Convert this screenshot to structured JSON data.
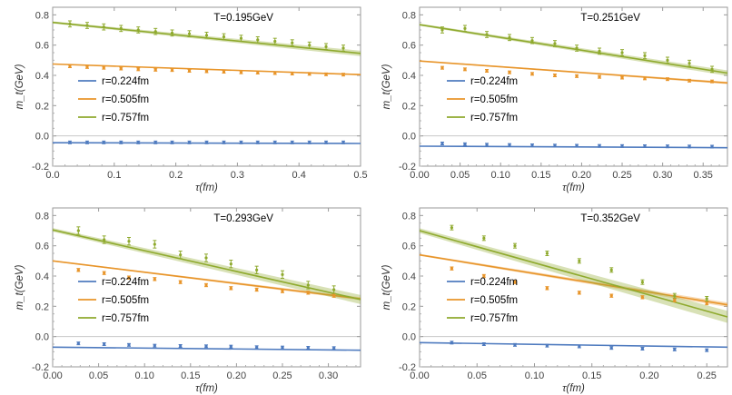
{
  "chart_data": [
    {
      "type": "scatter",
      "title": "T=0.195GeV",
      "xlabel": "τ(fm)",
      "ylabel": "m_t(GeV)",
      "xlim": [
        0,
        0.5
      ],
      "ylim": [
        -0.2,
        0.85
      ],
      "xticks": [
        "0.0",
        "0.1",
        "0.2",
        "0.3",
        "0.4",
        "0.5"
      ],
      "xtick_values": [
        0,
        0.1,
        0.2,
        0.3,
        0.4,
        0.5
      ],
      "yticks": [
        "-0.2",
        "0.0",
        "0.2",
        "0.4",
        "0.6",
        "0.8"
      ],
      "ytick_values": [
        -0.2,
        0,
        0.2,
        0.4,
        0.6,
        0.8
      ],
      "series": [
        {
          "name": "r=0.224fm",
          "color": "#4f7bbf",
          "x": [
            0.028,
            0.056,
            0.083,
            0.111,
            0.139,
            0.167,
            0.194,
            0.222,
            0.25,
            0.278,
            0.306,
            0.333,
            0.361,
            0.389,
            0.417,
            0.444,
            0.472
          ],
          "y": [
            -0.043,
            -0.043,
            -0.043,
            -0.043,
            -0.043,
            -0.043,
            -0.043,
            -0.043,
            -0.043,
            -0.043,
            -0.043,
            -0.043,
            -0.043,
            -0.043,
            -0.043,
            -0.043,
            -0.043
          ],
          "err": 0.004,
          "fit": [
            -0.045,
            -0.05
          ],
          "band": 0.002
        },
        {
          "name": "r=0.505fm",
          "color": "#e8952a",
          "x": [
            0.028,
            0.056,
            0.083,
            0.111,
            0.139,
            0.167,
            0.194,
            0.222,
            0.25,
            0.278,
            0.306,
            0.333,
            0.361,
            0.389,
            0.417,
            0.444,
            0.472
          ],
          "y": [
            0.46,
            0.455,
            0.45,
            0.445,
            0.44,
            0.437,
            0.435,
            0.43,
            0.427,
            0.424,
            0.42,
            0.418,
            0.415,
            0.412,
            0.41,
            0.407,
            0.405
          ],
          "err": 0.006,
          "fit": [
            0.475,
            0.405
          ],
          "band": 0.005
        },
        {
          "name": "r=0.757fm",
          "color": "#8faa2e",
          "x": [
            0.028,
            0.056,
            0.083,
            0.111,
            0.139,
            0.167,
            0.194,
            0.222,
            0.25,
            0.278,
            0.306,
            0.333,
            0.361,
            0.389,
            0.417,
            0.444,
            0.472
          ],
          "y": [
            0.74,
            0.73,
            0.72,
            0.71,
            0.7,
            0.69,
            0.68,
            0.675,
            0.665,
            0.655,
            0.645,
            0.635,
            0.625,
            0.615,
            0.6,
            0.59,
            0.58
          ],
          "err": 0.02,
          "fit": [
            0.75,
            0.545
          ],
          "band": 0.018
        }
      ]
    },
    {
      "type": "scatter",
      "title": "T=0.251GeV",
      "xlabel": "τ(fm)",
      "ylabel": "m_t(GeV)",
      "xlim": [
        0,
        0.38
      ],
      "ylim": [
        -0.2,
        0.85
      ],
      "xticks": [
        "0.00",
        "0.05",
        "0.10",
        "0.15",
        "0.20",
        "0.25",
        "0.30",
        "0.35"
      ],
      "xtick_values": [
        0,
        0.05,
        0.1,
        0.15,
        0.2,
        0.25,
        0.3,
        0.35
      ],
      "yticks": [
        "-0.2",
        "0.0",
        "0.2",
        "0.4",
        "0.6",
        "0.8"
      ],
      "ytick_values": [
        -0.2,
        0,
        0.2,
        0.4,
        0.6,
        0.8
      ],
      "series": [
        {
          "name": "r=0.224fm",
          "color": "#4f7bbf",
          "x": [
            0.028,
            0.056,
            0.083,
            0.111,
            0.139,
            0.167,
            0.194,
            0.222,
            0.25,
            0.278,
            0.306,
            0.333,
            0.361
          ],
          "y": [
            -0.05,
            -0.055,
            -0.058,
            -0.06,
            -0.062,
            -0.064,
            -0.065,
            -0.066,
            -0.067,
            -0.068,
            -0.069,
            -0.07,
            -0.071
          ],
          "err": 0.007,
          "fit": [
            -0.068,
            -0.078
          ],
          "band": 0.003
        },
        {
          "name": "r=0.505fm",
          "color": "#e8952a",
          "x": [
            0.028,
            0.056,
            0.083,
            0.111,
            0.139,
            0.167,
            0.194,
            0.222,
            0.25,
            0.278,
            0.306,
            0.333,
            0.361
          ],
          "y": [
            0.45,
            0.44,
            0.43,
            0.42,
            0.41,
            0.4,
            0.395,
            0.39,
            0.385,
            0.38,
            0.375,
            0.365,
            0.36
          ],
          "err": 0.007,
          "fit": [
            0.495,
            0.35
          ],
          "band": 0.008
        },
        {
          "name": "r=0.757fm",
          "color": "#8faa2e",
          "x": [
            0.028,
            0.056,
            0.083,
            0.111,
            0.139,
            0.167,
            0.194,
            0.222,
            0.25,
            0.278,
            0.306,
            0.333,
            0.361
          ],
          "y": [
            0.7,
            0.71,
            0.67,
            0.65,
            0.63,
            0.61,
            0.58,
            0.56,
            0.55,
            0.53,
            0.5,
            0.48,
            0.44
          ],
          "err": 0.02,
          "fit": [
            0.735,
            0.415
          ],
          "band": 0.018
        }
      ]
    },
    {
      "type": "scatter",
      "title": "T=0.293GeV",
      "xlabel": "τ(fm)",
      "ylabel": "m_t(GeV)",
      "xlim": [
        0,
        0.335
      ],
      "ylim": [
        -0.2,
        0.85
      ],
      "xticks": [
        "0.00",
        "0.05",
        "0.10",
        "0.15",
        "0.20",
        "0.25",
        "0.30"
      ],
      "xtick_values": [
        0,
        0.05,
        0.1,
        0.15,
        0.2,
        0.25,
        0.3
      ],
      "yticks": [
        "-0.2",
        "0.0",
        "0.2",
        "0.4",
        "0.6",
        "0.8"
      ],
      "ytick_values": [
        -0.2,
        0,
        0.2,
        0.4,
        0.6,
        0.8
      ],
      "series": [
        {
          "name": "r=0.224fm",
          "color": "#4f7bbf",
          "x": [
            0.028,
            0.056,
            0.083,
            0.111,
            0.139,
            0.167,
            0.194,
            0.222,
            0.25,
            0.278,
            0.306
          ],
          "y": [
            -0.045,
            -0.05,
            -0.055,
            -0.06,
            -0.062,
            -0.064,
            -0.066,
            -0.07,
            -0.072,
            -0.074,
            -0.076
          ],
          "err": 0.007,
          "fit": [
            -0.07,
            -0.09
          ],
          "band": 0.003
        },
        {
          "name": "r=0.505fm",
          "color": "#e8952a",
          "x": [
            0.028,
            0.056,
            0.083,
            0.111,
            0.139,
            0.167,
            0.194,
            0.222,
            0.25,
            0.278,
            0.306
          ],
          "y": [
            0.44,
            0.42,
            0.39,
            0.38,
            0.36,
            0.34,
            0.32,
            0.31,
            0.3,
            0.29,
            0.27
          ],
          "err": 0.01,
          "fit": [
            0.5,
            0.25
          ],
          "band": 0.01
        },
        {
          "name": "r=0.757fm",
          "color": "#8faa2e",
          "x": [
            0.028,
            0.056,
            0.083,
            0.111,
            0.139,
            0.167,
            0.194,
            0.222,
            0.25,
            0.278,
            0.306
          ],
          "y": [
            0.7,
            0.64,
            0.63,
            0.61,
            0.54,
            0.52,
            0.48,
            0.44,
            0.41,
            0.34,
            0.31
          ],
          "err": 0.025,
          "fit": [
            0.705,
            0.245
          ],
          "band": 0.03
        }
      ]
    },
    {
      "type": "scatter",
      "title": "T=0.352GeV",
      "xlabel": "τ(fm)",
      "ylabel": "m_t(GeV)",
      "xlim": [
        0,
        0.268
      ],
      "ylim": [
        -0.2,
        0.85
      ],
      "xticks": [
        "0.00",
        "0.05",
        "0.10",
        "0.15",
        "0.20",
        "0.25"
      ],
      "xtick_values": [
        0,
        0.05,
        0.1,
        0.15,
        0.2,
        0.25
      ],
      "yticks": [
        "-0.2",
        "0.0",
        "0.2",
        "0.4",
        "0.6",
        "0.8"
      ],
      "ytick_values": [
        -0.2,
        0,
        0.2,
        0.4,
        0.6,
        0.8
      ],
      "series": [
        {
          "name": "r=0.224fm",
          "color": "#4f7bbf",
          "x": [
            0.028,
            0.056,
            0.083,
            0.111,
            0.139,
            0.167,
            0.194,
            0.222,
            0.25
          ],
          "y": [
            -0.04,
            -0.05,
            -0.055,
            -0.06,
            -0.065,
            -0.075,
            -0.08,
            -0.085,
            -0.09
          ],
          "err": 0.008,
          "fit": [
            -0.04,
            -0.07
          ],
          "band": 0.004
        },
        {
          "name": "r=0.505fm",
          "color": "#e8952a",
          "x": [
            0.028,
            0.056,
            0.083,
            0.111,
            0.139,
            0.167,
            0.194,
            0.222,
            0.25
          ],
          "y": [
            0.45,
            0.4,
            0.36,
            0.32,
            0.29,
            0.27,
            0.26,
            0.24,
            0.22
          ],
          "err": 0.01,
          "fit": [
            0.54,
            0.21
          ],
          "band": 0.015
        },
        {
          "name": "r=0.757fm",
          "color": "#8faa2e",
          "x": [
            0.028,
            0.056,
            0.083,
            0.111,
            0.139,
            0.167,
            0.194,
            0.222,
            0.25
          ],
          "y": [
            0.72,
            0.65,
            0.6,
            0.55,
            0.5,
            0.44,
            0.36,
            0.27,
            0.25
          ],
          "err": 0.015,
          "fit": [
            0.7,
            0.13
          ],
          "band": 0.04
        }
      ]
    }
  ]
}
